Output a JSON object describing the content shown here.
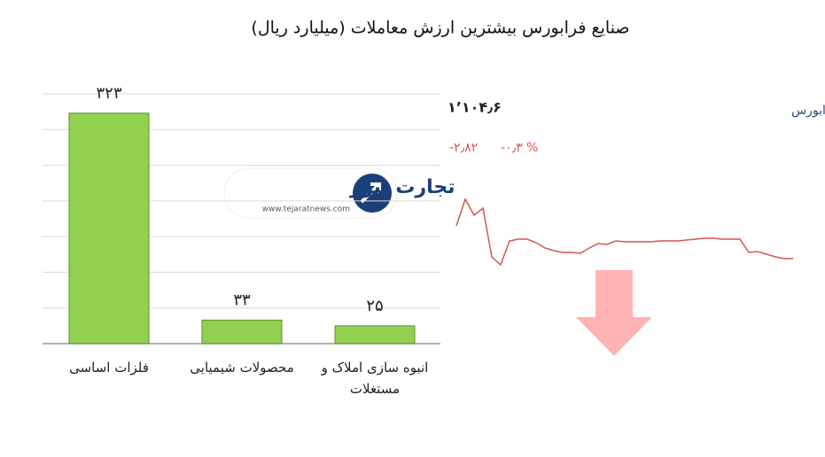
{
  "chart_data": [
    {
      "type": "bar",
      "title": "صنایع فرابورس بیشترین ارزش معاملات  (میلیارد ریال)",
      "categories": [
        "فلزات اساسی",
        "محصولات شیمیایی",
        "انبوه سازی املاک و مستغلات"
      ],
      "values": [
        323,
        33,
        25
      ],
      "value_labels": [
        "۳۲۳",
        "۳۳",
        "۲۵"
      ],
      "color": "#92d050",
      "ylim": [
        0,
        350
      ],
      "yticks": [
        0,
        50,
        100,
        150,
        200,
        250,
        300,
        350
      ],
      "grid": true,
      "ytick_labels": false
    },
    {
      "type": "line",
      "title": "کل فرابورس",
      "index": {
        "value": 1104.6,
        "label": "۱٬۱۰۴٫۶"
      },
      "change": {
        "value": -2.82,
        "label": "-۲٫۸۲"
      },
      "change_percent": {
        "value": -0.3,
        "label": "-۰٫۳ %"
      },
      "color": "#d9534f",
      "direction": "down",
      "values": [
        55,
        85,
        67,
        75,
        20,
        11,
        38,
        40,
        40,
        36,
        30,
        27,
        25,
        25,
        24,
        30,
        35,
        34,
        38,
        37,
        37,
        37,
        37,
        38,
        38,
        38,
        39,
        40,
        41,
        41,
        40,
        40,
        40,
        25,
        26,
        23,
        20,
        18,
        18
      ],
      "ylim": [
        0,
        95
      ]
    }
  ],
  "logo": {
    "name": "تجارت نیوز",
    "url": "www.tejaratnews.com"
  }
}
